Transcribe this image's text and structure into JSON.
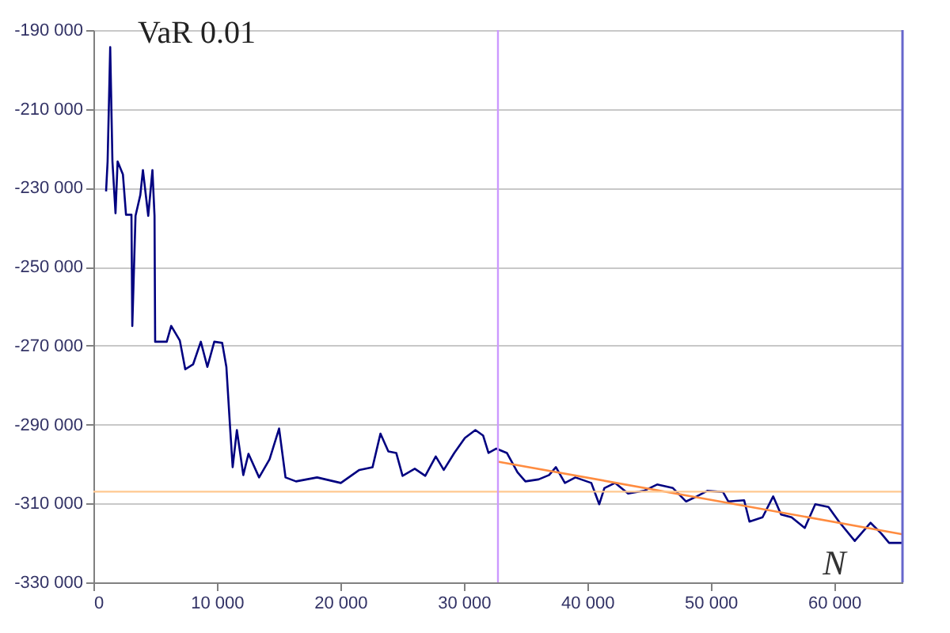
{
  "chart_data": {
    "type": "line",
    "ylabel": "VaR 0.01",
    "xlabel": "N",
    "xlim": [
      0,
      65536
    ],
    "ylim": [
      -330000,
      -190000
    ],
    "xticks": [
      0,
      {
        "value": 10000,
        "label": "10 000"
      },
      {
        "value": 20000,
        "label": "20 000"
      },
      {
        "value": 30000,
        "label": "30 000"
      },
      {
        "value": 40000,
        "label": "40 000"
      },
      {
        "value": 50000,
        "label": "50 000"
      },
      {
        "value": 60000,
        "label": "60 000"
      }
    ],
    "yticks": [
      {
        "value": -330000,
        "label": "-330 000"
      },
      {
        "value": -310000,
        "label": "-310 000"
      },
      {
        "value": -290000,
        "label": "-290 000"
      },
      {
        "value": -270000,
        "label": "-270 000"
      },
      {
        "value": -250000,
        "label": "-250 000"
      },
      {
        "value": -230000,
        "label": "-230 000"
      },
      {
        "value": -210000,
        "label": "-210 000"
      },
      {
        "value": -190000,
        "label": "-190 000"
      }
    ],
    "grid": "y",
    "marker": "none",
    "line_style": "solid",
    "series": [
      {
        "color": "#000080",
        "x": [
          1025,
          1150,
          1360,
          1540,
          1790,
          1960,
          2390,
          2640,
          3080,
          3150,
          3410,
          3800,
          4010,
          4440,
          4780,
          4950,
          5000,
          5940,
          6300,
          7000,
          7440,
          8080,
          8700,
          9230,
          9790,
          10430,
          10770,
          11070,
          11280,
          11620,
          12140,
          12560,
          13420,
          14270,
          15040,
          15560,
          16410,
          18120,
          20040,
          21540,
          22610,
          23250,
          23890,
          24530,
          25040,
          26030,
          26880,
          27730,
          28380,
          29230,
          30090,
          30940,
          31570,
          32000,
          32640,
          33490,
          34350,
          34990,
          36060,
          36910,
          37460,
          38190,
          39040,
          40330,
          40970,
          41390,
          42250,
          43310,
          44590,
          45660,
          46940,
          48010,
          48870,
          49720,
          51000,
          51430,
          52710,
          53140,
          54200,
          55060,
          55700,
          56550,
          57620,
          58470,
          59540,
          60390,
          61670,
          62950,
          63810,
          64450,
          65520
        ],
        "values": [
          -230900,
          -223300,
          -194300,
          -223300,
          -236400,
          -223300,
          -226600,
          -236800,
          -236800,
          -265000,
          -237100,
          -231800,
          -225500,
          -237100,
          -225500,
          -237100,
          -269000,
          -269000,
          -265000,
          -268700,
          -276000,
          -274700,
          -269000,
          -275400,
          -269000,
          -269300,
          -275400,
          -290700,
          -300800,
          -291400,
          -302800,
          -297400,
          -303400,
          -298800,
          -291000,
          -303400,
          -304400,
          -303400,
          -304800,
          -301500,
          -300800,
          -292300,
          -296800,
          -297200,
          -303000,
          -301200,
          -303000,
          -298100,
          -301500,
          -297200,
          -293400,
          -291400,
          -292800,
          -297200,
          -296100,
          -297200,
          -302100,
          -304400,
          -303900,
          -302800,
          -300800,
          -304800,
          -303400,
          -304800,
          -310200,
          -306100,
          -304800,
          -307500,
          -306800,
          -305200,
          -306100,
          -309500,
          -308200,
          -306800,
          -307100,
          -309500,
          -309200,
          -314600,
          -313500,
          -308200,
          -312800,
          -313500,
          -316200,
          -310200,
          -310900,
          -314600,
          -319500,
          -314900,
          -317600,
          -320000,
          -320000
        ]
      },
      {
        "type": "line",
        "color": "#ff8c40",
        "x": [
          32768,
          65536
        ],
        "values": [
          -299400,
          -317800
        ]
      }
    ],
    "ref_lines": [
      {
        "axis": "y",
        "value": -307000,
        "color": "#ffc890"
      },
      {
        "axis": "x",
        "value": 32768,
        "color": "#cc99ff"
      }
    ]
  }
}
